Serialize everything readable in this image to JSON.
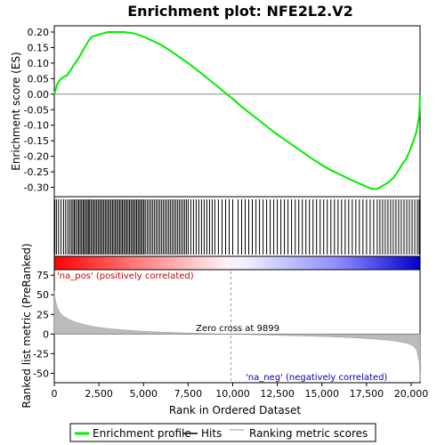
{
  "chart_data": {
    "type": "line",
    "title": "Enrichment plot: NFE2L2.V2",
    "colors": {
      "enrichment_line": "#00ee00",
      "hits": "#000000",
      "ranking_fill": "#bbbbbb",
      "zero_line": "#888888",
      "pos_annotation": "#cc0000",
      "neg_annotation": "#0000aa",
      "heat_pos": "#ff0000",
      "heat_neg": "#0000ff"
    },
    "x_axis": {
      "label": "Rank in Ordered Dataset",
      "range": [
        0,
        20500
      ],
      "ticks": [
        0,
        2500,
        5000,
        7500,
        10000,
        12500,
        15000,
        17500,
        20000
      ],
      "tick_labels": [
        "0",
        "2,500",
        "5,000",
        "7,500",
        "10,000",
        "12,500",
        "15,000",
        "17,500",
        "20,000"
      ]
    },
    "es_panel": {
      "ylabel": "Enrichment score (ES)",
      "ylim": [
        -0.33,
        0.22
      ],
      "ticks": [
        0.2,
        0.15,
        0.1,
        0.05,
        0.0,
        -0.05,
        -0.1,
        -0.15,
        -0.2,
        -0.25,
        -0.3
      ],
      "tick_labels": [
        "0.20",
        "0.15",
        "0.10",
        "0.05",
        "0.00",
        "-0.05",
        "-0.10",
        "-0.15",
        "-0.20",
        "-0.25",
        "-0.30"
      ],
      "series": [
        {
          "name": "Enrichment profile",
          "x": [
            0,
            150,
            300,
            500,
            700,
            900,
            1100,
            1300,
            1500,
            1700,
            1900,
            2100,
            2400,
            2700,
            3000,
            3300,
            3600,
            3900,
            4200,
            4500,
            5000,
            5500,
            6000,
            6500,
            7000,
            7500,
            8000,
            8500,
            9000,
            9500,
            10000,
            10500,
            11000,
            11500,
            12000,
            12500,
            13000,
            13500,
            14000,
            14500,
            15000,
            15500,
            16000,
            16500,
            17000,
            17500,
            17800,
            18100,
            18400,
            18700,
            19000,
            19300,
            19500,
            19700,
            19900,
            20100,
            20300,
            20450,
            20500
          ],
          "y": [
            0.0,
            0.03,
            0.045,
            0.055,
            0.06,
            0.075,
            0.095,
            0.11,
            0.13,
            0.15,
            0.17,
            0.185,
            0.19,
            0.195,
            0.2,
            0.2,
            0.2,
            0.2,
            0.198,
            0.195,
            0.185,
            0.172,
            0.158,
            0.14,
            0.12,
            0.1,
            0.078,
            0.055,
            0.032,
            0.008,
            -0.015,
            -0.04,
            -0.063,
            -0.085,
            -0.108,
            -0.13,
            -0.15,
            -0.17,
            -0.19,
            -0.21,
            -0.228,
            -0.245,
            -0.258,
            -0.272,
            -0.285,
            -0.298,
            -0.305,
            -0.305,
            -0.295,
            -0.285,
            -0.27,
            -0.245,
            -0.225,
            -0.21,
            -0.185,
            -0.155,
            -0.12,
            -0.07,
            0.0
          ]
        }
      ]
    },
    "hits": [
      30,
      120,
      240,
      380,
      520,
      640,
      760,
      860,
      960,
      1040,
      1120,
      1200,
      1290,
      1370,
      1450,
      1530,
      1610,
      1680,
      1760,
      1840,
      1910,
      1980,
      2060,
      2140,
      2220,
      2300,
      2380,
      2460,
      2540,
      2620,
      2700,
      2780,
      2860,
      2940,
      3020,
      3100,
      3180,
      3260,
      3340,
      3420,
      3500,
      3580,
      3660,
      3740,
      3820,
      3900,
      3980,
      4060,
      4140,
      4220,
      4300,
      4380,
      4460,
      4540,
      4620,
      4700,
      4780,
      4860,
      4940,
      5020,
      5100,
      5200,
      5300,
      5400,
      5500,
      5600,
      5700,
      5800,
      5900,
      6000,
      6100,
      6200,
      6300,
      6400,
      6500,
      6600,
      6700,
      6800,
      6900,
      7000,
      7100,
      7200,
      7300,
      7400,
      7500,
      7650,
      7800,
      7950,
      8100,
      8250,
      8400,
      8550,
      8700,
      8850,
      9000,
      9200,
      9400,
      9600,
      9800,
      10000,
      10300,
      10500,
      10700,
      10900,
      11100,
      11300,
      11500,
      11700,
      11900,
      12100,
      12300,
      12500,
      12700,
      12900,
      13100,
      13300,
      13500,
      13700,
      13900,
      14100,
      14300,
      14500,
      14700,
      14900,
      15100,
      15300,
      15500,
      15700,
      15900,
      16100,
      16300,
      16500,
      16700,
      16900,
      17100,
      17300,
      17500,
      17700,
      17900,
      18100,
      18250,
      18400,
      18550,
      18700,
      18850,
      19000,
      19150,
      19300,
      19450,
      19600,
      19750,
      19900,
      20050,
      20200,
      20350,
      20450
    ],
    "rank_panel": {
      "ylabel": "Ranked list metric (PreRanked)",
      "ylim": [
        -62,
        82
      ],
      "ticks": [
        75,
        50,
        25,
        0,
        -25,
        -50
      ],
      "tick_labels": [
        "75",
        "50",
        "25",
        "0",
        "-25",
        "-50"
      ],
      "metric_x": [
        0,
        50,
        150,
        300,
        500,
        800,
        1200,
        1700,
        2300,
        3000,
        4000,
        5000,
        6000,
        7000,
        8000,
        9000,
        9899,
        11000,
        12500,
        14000,
        15500,
        17000,
        18000,
        18800,
        19400,
        19800,
        20100,
        20300,
        20450,
        20500
      ],
      "metric_y": [
        55,
        45,
        35,
        28,
        23,
        19,
        15,
        12,
        9,
        7,
        5,
        3.5,
        2.5,
        1.6,
        1,
        0.4,
        0,
        -0.8,
        -1.6,
        -2.5,
        -3.5,
        -5,
        -6.5,
        -8,
        -10,
        -12,
        -15,
        -20,
        -35,
        -60
      ]
    },
    "annotations": {
      "pos": "'na_pos' (positively correlated)",
      "neg": "'na_neg' (negatively correlated)",
      "zero_cross": "Zero cross at 9899",
      "zero_cross_x": 9899
    },
    "legend": {
      "placement": "bottom",
      "items": [
        {
          "label": "Enrichment profile",
          "kind": "line"
        },
        {
          "label": "Hits",
          "kind": "line"
        },
        {
          "label": "Ranking metric scores",
          "kind": "line"
        }
      ]
    }
  }
}
